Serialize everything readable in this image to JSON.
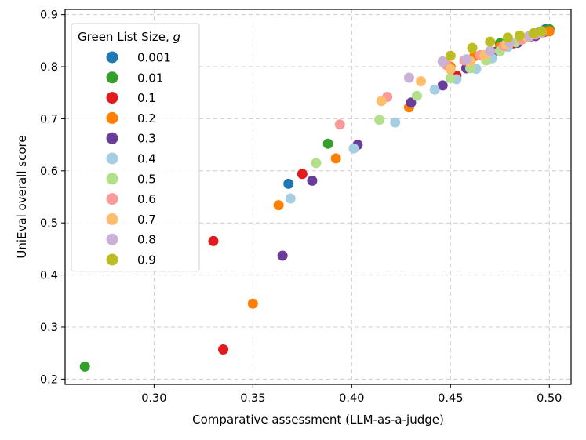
{
  "chart_data": {
    "type": "scatter",
    "title": "",
    "xlabel": "Comparative assessment (LLM-as-a-judge)",
    "ylabel": "UniEval overall score",
    "xlim": [
      0.255,
      0.511
    ],
    "ylim": [
      0.19,
      0.91
    ],
    "xticks": [
      0.3,
      0.35,
      0.4,
      0.45,
      0.5
    ],
    "xtick_labels": [
      "0.30",
      "0.35",
      "0.40",
      "0.45",
      "0.50"
    ],
    "yticks": [
      0.2,
      0.3,
      0.4,
      0.5,
      0.6,
      0.7,
      0.8,
      0.9
    ],
    "ytick_labels": [
      "0.2",
      "0.3",
      "0.4",
      "0.5",
      "0.6",
      "0.7",
      "0.8",
      "0.9"
    ],
    "grid": true,
    "legend": {
      "title_prefix": "Green List Size, ",
      "title_var": "g",
      "placement": "top-left"
    },
    "series": [
      {
        "name": "0.001",
        "color": "#1f78b4",
        "points": [
          [
            0.368,
            0.575
          ],
          [
            0.48,
            0.842
          ],
          [
            0.485,
            0.852
          ],
          [
            0.49,
            0.858
          ],
          [
            0.495,
            0.866
          ],
          [
            0.498,
            0.872
          ],
          [
            0.5,
            0.872
          ]
        ]
      },
      {
        "name": "0.01",
        "color": "#33a02c",
        "points": [
          [
            0.265,
            0.224
          ],
          [
            0.388,
            0.652
          ],
          [
            0.475,
            0.845
          ],
          [
            0.485,
            0.855
          ],
          [
            0.492,
            0.864
          ],
          [
            0.497,
            0.869
          ],
          [
            0.5,
            0.872
          ]
        ]
      },
      {
        "name": "0.1",
        "color": "#e31a1c",
        "points": [
          [
            0.335,
            0.257
          ],
          [
            0.33,
            0.465
          ],
          [
            0.375,
            0.594
          ],
          [
            0.453,
            0.783
          ],
          [
            0.47,
            0.825
          ],
          [
            0.482,
            0.845
          ],
          [
            0.49,
            0.857
          ],
          [
            0.497,
            0.866
          ]
        ]
      },
      {
        "name": "0.2",
        "color": "#ff7f00",
        "points": [
          [
            0.35,
            0.345
          ],
          [
            0.363,
            0.534
          ],
          [
            0.392,
            0.624
          ],
          [
            0.429,
            0.722
          ],
          [
            0.45,
            0.8
          ],
          [
            0.462,
            0.82
          ],
          [
            0.475,
            0.838
          ],
          [
            0.485,
            0.855
          ],
          [
            0.492,
            0.862
          ],
          [
            0.5,
            0.868
          ]
        ]
      },
      {
        "name": "0.3",
        "color": "#6a3d9a",
        "points": [
          [
            0.365,
            0.437
          ],
          [
            0.38,
            0.581
          ],
          [
            0.403,
            0.65
          ],
          [
            0.43,
            0.731
          ],
          [
            0.446,
            0.764
          ],
          [
            0.458,
            0.797
          ],
          [
            0.472,
            0.828
          ],
          [
            0.484,
            0.846
          ],
          [
            0.493,
            0.859
          ]
        ]
      },
      {
        "name": "0.4",
        "color": "#a6cee3",
        "points": [
          [
            0.369,
            0.547
          ],
          [
            0.401,
            0.643
          ],
          [
            0.422,
            0.693
          ],
          [
            0.442,
            0.756
          ],
          [
            0.453,
            0.776
          ],
          [
            0.463,
            0.796
          ],
          [
            0.471,
            0.816
          ],
          [
            0.479,
            0.838
          ],
          [
            0.487,
            0.855
          ]
        ]
      },
      {
        "name": "0.5",
        "color": "#b2df8a",
        "points": [
          [
            0.382,
            0.615
          ],
          [
            0.414,
            0.698
          ],
          [
            0.433,
            0.744
          ],
          [
            0.45,
            0.778
          ],
          [
            0.46,
            0.797
          ],
          [
            0.468,
            0.812
          ],
          [
            0.475,
            0.83
          ],
          [
            0.483,
            0.847
          ],
          [
            0.49,
            0.86
          ],
          [
            0.496,
            0.865
          ]
        ]
      },
      {
        "name": "0.6",
        "color": "#fb9a99",
        "points": [
          [
            0.394,
            0.689
          ],
          [
            0.418,
            0.742
          ],
          [
            0.448,
            0.803
          ],
          [
            0.457,
            0.812
          ],
          [
            0.465,
            0.822
          ],
          [
            0.477,
            0.84
          ],
          [
            0.486,
            0.852
          ],
          [
            0.493,
            0.862
          ]
        ]
      },
      {
        "name": "0.7",
        "color": "#fdbf6f",
        "points": [
          [
            0.415,
            0.734
          ],
          [
            0.435,
            0.772
          ],
          [
            0.45,
            0.795
          ],
          [
            0.46,
            0.81
          ],
          [
            0.467,
            0.822
          ],
          [
            0.478,
            0.843
          ],
          [
            0.489,
            0.857
          ],
          [
            0.496,
            0.866
          ]
        ]
      },
      {
        "name": "0.8",
        "color": "#cab2d6",
        "points": [
          [
            0.429,
            0.779
          ],
          [
            0.446,
            0.81
          ],
          [
            0.458,
            0.814
          ],
          [
            0.47,
            0.83
          ],
          [
            0.48,
            0.846
          ],
          [
            0.49,
            0.858
          ],
          [
            0.496,
            0.866
          ]
        ]
      },
      {
        "name": "0.9",
        "color": "#bcbd22",
        "points": [
          [
            0.45,
            0.821
          ],
          [
            0.461,
            0.836
          ],
          [
            0.47,
            0.848
          ],
          [
            0.479,
            0.856
          ],
          [
            0.485,
            0.86
          ],
          [
            0.492,
            0.864
          ],
          [
            0.496,
            0.868
          ]
        ]
      }
    ]
  }
}
